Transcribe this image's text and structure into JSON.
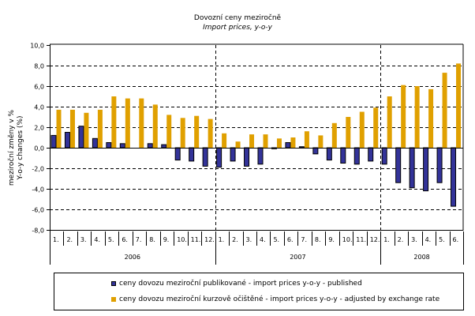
{
  "chart_data": {
    "type": "bar",
    "title": "Dovozní ceny meziročně",
    "subtitle": "Import prices, y-o-y",
    "ylabel": "meziroční změny v %",
    "ylabel2": "Y-o-y changes (%)",
    "xlabel": "",
    "ylim": [
      -8.0,
      10.0
    ],
    "yticks": [
      10.0,
      8.0,
      6.0,
      4.0,
      2.0,
      0.0,
      -2.0,
      -4.0,
      -6.0,
      -8.0
    ],
    "ytick_labels": [
      "10,0",
      "8,0",
      "6,0",
      "4,0",
      "2,0",
      "0,0",
      "-2,0",
      "-4,0",
      "-6,0",
      "-8,0"
    ],
    "grid": "horizontal-dashed",
    "categories": [
      "1.",
      "2.",
      "3.",
      "4.",
      "5.",
      "6.",
      "7.",
      "8.",
      "9.",
      "10.",
      "11.",
      "12.",
      "1.",
      "2.",
      "3.",
      "4.",
      "5.",
      "6.",
      "7.",
      "8.",
      "9.",
      "10.",
      "11.",
      "12.",
      "1.",
      "2.",
      "3.",
      "4.",
      "5.",
      "6."
    ],
    "groups": [
      {
        "label": "2006",
        "count": 12
      },
      {
        "label": "2007",
        "count": 12
      },
      {
        "label": "2008",
        "count": 6
      }
    ],
    "series": [
      {
        "name": "ceny dovozu meziroční publikované - import prices y-o-y - published",
        "color": "#333399",
        "values": [
          1.2,
          1.5,
          2.1,
          0.9,
          0.5,
          0.4,
          0.0,
          0.4,
          0.3,
          -1.2,
          -1.3,
          -1.8,
          -1.9,
          -1.3,
          -1.8,
          -1.6,
          -0.1,
          0.5,
          0.1,
          -0.6,
          -1.2,
          -1.5,
          -1.6,
          -1.3,
          -1.6,
          -3.4,
          -3.9,
          -4.2,
          -3.4,
          -5.7
        ]
      },
      {
        "name": "ceny dovozu meziroční kurzově očištěné - import prices y-o-y - adjusted by exchange rate",
        "color": "#E0A000",
        "values": [
          3.7,
          3.7,
          3.4,
          3.7,
          5.0,
          4.8,
          4.8,
          4.2,
          3.2,
          2.9,
          3.1,
          2.8,
          1.4,
          0.6,
          1.3,
          1.3,
          0.9,
          1.0,
          1.6,
          1.2,
          2.4,
          3.0,
          3.5,
          3.9,
          5.0,
          6.1,
          6.0,
          5.7,
          7.3,
          8.2
        ]
      }
    ],
    "legend_position": "bottom"
  }
}
